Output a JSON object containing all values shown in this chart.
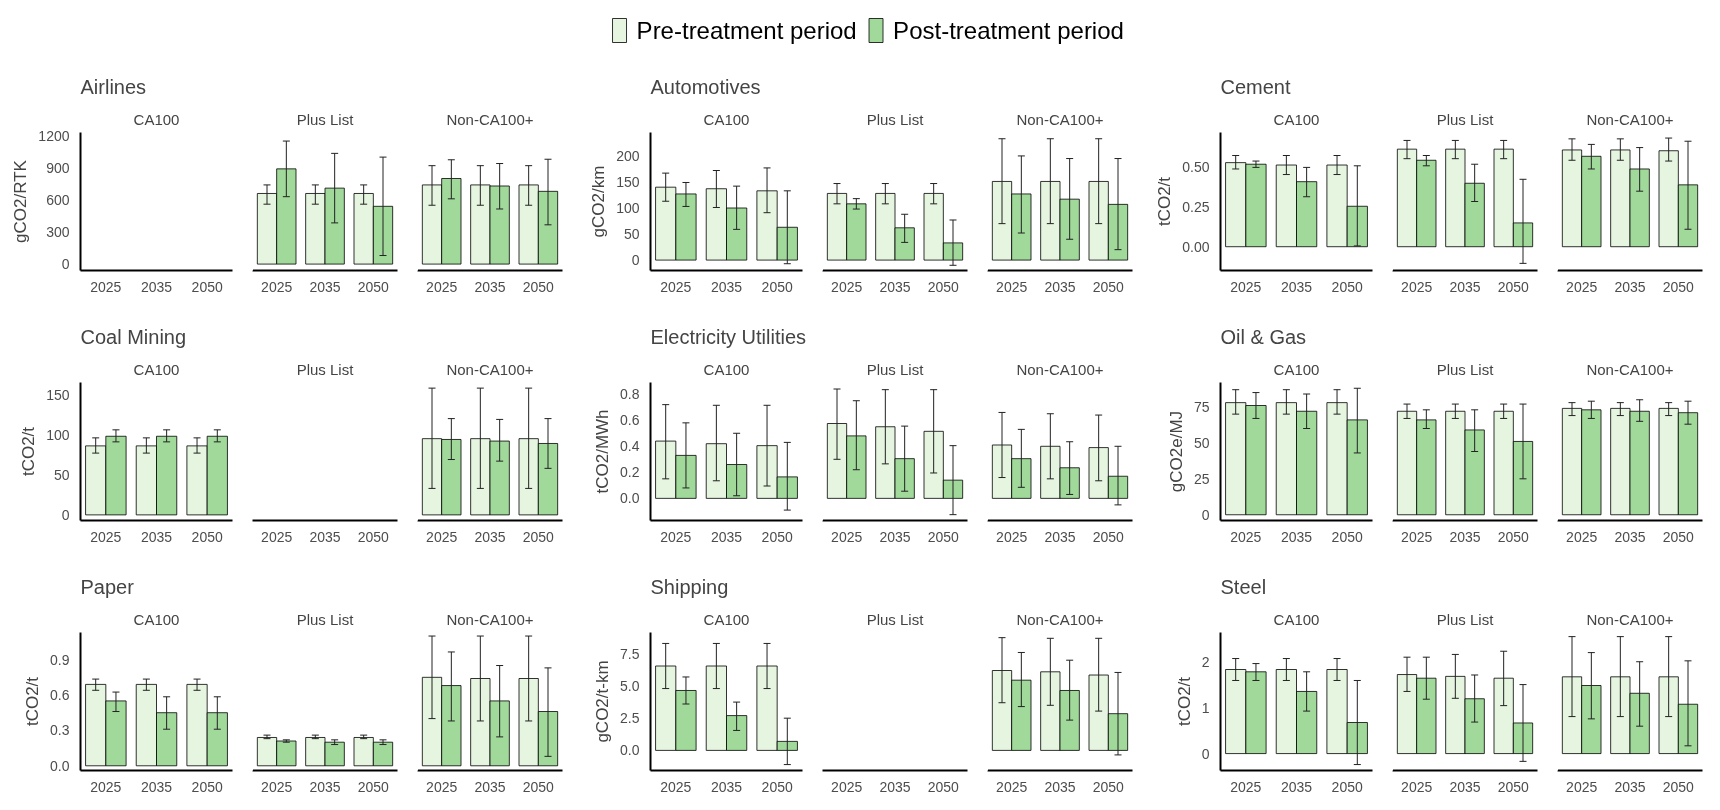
{
  "chart_data": [
    {
      "type": "bar",
      "title": "Airlines",
      "subtitle": "CA100",
      "ylabel": "gCO2/RTK",
      "categories": [
        "2025",
        "2035",
        "2050"
      ],
      "ylim": [
        -60,
        1230
      ],
      "yticks": [
        0,
        300,
        600,
        900,
        1200
      ],
      "legend": "top",
      "series": [
        {
          "name": "Pre-treatment period",
          "color": "#e5f5e0",
          "values": [
            null,
            null,
            null
          ]
        },
        {
          "name": "Post-treatment period",
          "color": "#a1d99b",
          "values": [
            null,
            null,
            null
          ]
        }
      ]
    },
    {
      "type": "bar",
      "subtitle": "Plus List",
      "categories": [
        "2025",
        "2035",
        "2050"
      ],
      "ylim": [
        -60,
        1230
      ],
      "yticks": [
        0,
        300,
        600,
        900,
        1200
      ],
      "tick_labels": "x",
      "series": [
        {
          "color": "#e5f5e0",
          "values": [
            660,
            660,
            660
          ],
          "errors": [
            [
              560,
              740
            ],
            [
              560,
              740
            ],
            [
              560,
              740
            ]
          ]
        },
        {
          "color": "#a1d99b",
          "values": [
            890,
            710,
            540
          ],
          "errors": [
            [
              630,
              1150
            ],
            [
              385,
              1035
            ],
            [
              80,
              1000
            ]
          ]
        }
      ]
    },
    {
      "type": "bar",
      "subtitle": "Non-CA100+",
      "categories": [
        "2025",
        "2035",
        "2050"
      ],
      "ylim": [
        -60,
        1230
      ],
      "yticks": [
        0,
        300,
        600,
        900,
        1200
      ],
      "tick_labels": "x",
      "series": [
        {
          "color": "#e5f5e0",
          "values": [
            740,
            740,
            740
          ],
          "errors": [
            [
              550,
              920
            ],
            [
              550,
              920
            ],
            [
              550,
              920
            ]
          ]
        },
        {
          "color": "#a1d99b",
          "values": [
            800,
            730,
            680
          ],
          "errors": [
            [
              610,
              975
            ],
            [
              515,
              940
            ],
            [
              367,
              980
            ]
          ]
        }
      ]
    },
    {
      "type": "bar",
      "title": "Automotives",
      "subtitle": "CA100",
      "ylabel": "gCO2/km",
      "categories": [
        "2025",
        "2035",
        "2050"
      ],
      "ylim": [
        -20,
        245
      ],
      "yticks": [
        0,
        50,
        100,
        150,
        200
      ],
      "series": [
        {
          "color": "#e5f5e0",
          "values": [
            140,
            137,
            133
          ],
          "errors": [
            [
              113,
              167
            ],
            [
              101,
              172
            ],
            [
              91,
              177
            ]
          ]
        },
        {
          "color": "#a1d99b",
          "values": [
            127,
            100,
            63
          ],
          "errors": [
            [
              103,
              149
            ],
            [
              59,
              142
            ],
            [
              -7,
              133
            ]
          ]
        }
      ]
    },
    {
      "type": "bar",
      "subtitle": "Plus List",
      "categories": [
        "2025",
        "2035",
        "2050"
      ],
      "ylim": [
        -20,
        245
      ],
      "yticks": [
        0,
        50,
        100,
        150,
        200
      ],
      "tick_labels": "x",
      "series": [
        {
          "color": "#e5f5e0",
          "values": [
            128,
            128,
            128
          ],
          "errors": [
            [
              108,
              147
            ],
            [
              108,
              147
            ],
            [
              108,
              147
            ]
          ]
        },
        {
          "color": "#a1d99b",
          "values": [
            108,
            62,
            33
          ],
          "errors": [
            [
              98,
              118
            ],
            [
              34,
              88
            ],
            [
              -10,
              77
            ]
          ]
        }
      ]
    },
    {
      "type": "bar",
      "subtitle": "Non-CA100+",
      "categories": [
        "2025",
        "2035",
        "2050"
      ],
      "ylim": [
        -20,
        245
      ],
      "yticks": [
        0,
        50,
        100,
        150,
        200
      ],
      "tick_labels": "x",
      "series": [
        {
          "color": "#e5f5e0",
          "values": [
            151,
            151,
            151
          ],
          "errors": [
            [
              70,
              233
            ],
            [
              70,
              233
            ],
            [
              70,
              233
            ]
          ]
        },
        {
          "color": "#a1d99b",
          "values": [
            127,
            117,
            107
          ],
          "errors": [
            [
              52,
              200
            ],
            [
              40,
              195
            ],
            [
              20,
              195
            ]
          ]
        }
      ]
    },
    {
      "type": "bar",
      "title": "Cement",
      "subtitle": "CA100",
      "ylabel": "tCO2/t",
      "categories": [
        "2025",
        "2035",
        "2050"
      ],
      "ylim": [
        -0.15,
        0.72
      ],
      "yticks": [
        {
          "value": 0,
          "label": "0.00"
        },
        {
          "value": 0.25,
          "label": "0.25"
        },
        {
          "value": 0.5,
          "label": "0.50"
        }
      ],
      "series": [
        {
          "color": "#e5f5e0",
          "values": [
            0.53,
            0.515,
            0.515
          ],
          "errors": [
            [
              0.49,
              0.575
            ],
            [
              0.455,
              0.575
            ],
            [
              0.455,
              0.575
            ]
          ]
        },
        {
          "color": "#a1d99b",
          "values": [
            0.52,
            0.41,
            0.255
          ],
          "errors": [
            [
              0.5,
              0.54
            ],
            [
              0.315,
              0.5
            ],
            [
              0.005,
              0.51
            ]
          ]
        }
      ]
    },
    {
      "type": "bar",
      "subtitle": "Plus List",
      "categories": [
        "2025",
        "2035",
        "2050"
      ],
      "ylim": [
        -0.15,
        0.72
      ],
      "yticks": [
        0,
        0.25,
        0.5
      ],
      "tick_labels": "x",
      "series": [
        {
          "color": "#e5f5e0",
          "values": [
            0.615,
            0.615,
            0.615
          ],
          "errors": [
            [
              0.555,
              0.67
            ],
            [
              0.555,
              0.67
            ],
            [
              0.555,
              0.67
            ]
          ]
        },
        {
          "color": "#a1d99b",
          "values": [
            0.545,
            0.4,
            0.15
          ],
          "errors": [
            [
              0.51,
              0.575
            ],
            [
              0.285,
              0.52
            ],
            [
              -0.105,
              0.425
            ]
          ]
        }
      ]
    },
    {
      "type": "bar",
      "subtitle": "Non-CA100+",
      "categories": [
        "2025",
        "2035",
        "2050"
      ],
      "ylim": [
        -0.15,
        0.72
      ],
      "yticks": [
        0,
        0.25,
        0.5
      ],
      "tick_labels": "x",
      "series": [
        {
          "color": "#e5f5e0",
          "values": [
            0.61,
            0.61,
            0.605
          ],
          "errors": [
            [
              0.545,
              0.68
            ],
            [
              0.545,
              0.68
            ],
            [
              0.54,
              0.685
            ]
          ]
        },
        {
          "color": "#a1d99b",
          "values": [
            0.57,
            0.49,
            0.39
          ],
          "errors": [
            [
              0.49,
              0.645
            ],
            [
              0.35,
              0.625
            ],
            [
              0.11,
              0.665
            ]
          ]
        }
      ]
    },
    {
      "type": "bar",
      "title": "Coal Mining",
      "subtitle": "CA100",
      "ylabel": "tCO2/t",
      "categories": [
        "2025",
        "2035",
        "2050"
      ],
      "ylim": [
        -7,
        165
      ],
      "yticks": [
        0,
        50,
        100,
        150
      ],
      "series": [
        {
          "color": "#e5f5e0",
          "values": [
            86,
            86,
            86
          ],
          "errors": [
            [
              77,
              96
            ],
            [
              77,
              96
            ],
            [
              77,
              96
            ]
          ]
        },
        {
          "color": "#a1d99b",
          "values": [
            98,
            98,
            98
          ],
          "errors": [
            [
              91,
              106
            ],
            [
              91,
              106
            ],
            [
              91,
              106
            ]
          ]
        }
      ]
    },
    {
      "type": "other",
      "subtitle": "Plus List",
      "categories": [
        "2025",
        "2035",
        "2050"
      ]
    },
    {
      "type": "bar",
      "subtitle": "Non-CA100+",
      "categories": [
        "2025",
        "2035",
        "2050"
      ],
      "ylim": [
        -7,
        165
      ],
      "yticks": [
        0,
        50,
        100,
        150
      ],
      "tick_labels": "x",
      "series": [
        {
          "color": "#e5f5e0",
          "values": [
            95,
            95,
            95
          ],
          "errors": [
            [
              33,
              158
            ],
            [
              33,
              158
            ],
            [
              33,
              158
            ]
          ]
        },
        {
          "color": "#a1d99b",
          "values": [
            94,
            92,
            89
          ],
          "errors": [
            [
              69,
              120
            ],
            [
              67,
              119
            ],
            [
              58,
              120
            ]
          ]
        }
      ]
    },
    {
      "type": "bar",
      "title": "Electricity Utilities",
      "subtitle": "CA100",
      "ylabel": "tCO2/MWh",
      "categories": [
        "2025",
        "2035",
        "2050"
      ],
      "ylim": [
        -0.17,
        0.89
      ],
      "yticks": [
        {
          "value": 0,
          "label": "0.0"
        },
        {
          "value": 0.2,
          "label": "0.2"
        },
        {
          "value": 0.4,
          "label": "0.4"
        },
        {
          "value": 0.6,
          "label": "0.6"
        },
        {
          "value": 0.8,
          "label": "0.8"
        }
      ],
      "series": [
        {
          "color": "#e5f5e0",
          "values": [
            0.44,
            0.42,
            0.405
          ],
          "errors": [
            [
              0.15,
              0.72
            ],
            [
              0.135,
              0.715
            ],
            [
              0.095,
              0.715
            ]
          ]
        },
        {
          "color": "#a1d99b",
          "values": [
            0.33,
            0.26,
            0.165
          ],
          "errors": [
            [
              0.08,
              0.58
            ],
            [
              0.02,
              0.5
            ],
            [
              -0.09,
              0.43
            ]
          ]
        }
      ]
    },
    {
      "type": "bar",
      "subtitle": "Plus List",
      "categories": [
        "2025",
        "2035",
        "2050"
      ],
      "ylim": [
        -0.17,
        0.89
      ],
      "yticks": [
        0,
        0.2,
        0.4,
        0.6,
        0.8
      ],
      "tick_labels": "x",
      "series": [
        {
          "color": "#e5f5e0",
          "values": [
            0.575,
            0.55,
            0.515
          ],
          "errors": [
            [
              0.3,
              0.84
            ],
            [
              0.265,
              0.835
            ],
            [
              0.195,
              0.835
            ]
          ]
        },
        {
          "color": "#a1d99b",
          "values": [
            0.48,
            0.305,
            0.14
          ],
          "errors": [
            [
              0.22,
              0.75
            ],
            [
              0.055,
              0.555
            ],
            [
              -0.125,
              0.405
            ]
          ]
        }
      ]
    },
    {
      "type": "bar",
      "subtitle": "Non-CA100+",
      "categories": [
        "2025",
        "2035",
        "2050"
      ],
      "ylim": [
        -0.17,
        0.89
      ],
      "yticks": [
        0,
        0.2,
        0.4,
        0.6,
        0.8
      ],
      "tick_labels": "x",
      "series": [
        {
          "color": "#e5f5e0",
          "values": [
            0.41,
            0.4,
            0.39
          ],
          "errors": [
            [
              0.16,
              0.66
            ],
            [
              0.15,
              0.65
            ],
            [
              0.135,
              0.64
            ]
          ]
        },
        {
          "color": "#a1d99b",
          "values": [
            0.305,
            0.235,
            0.17
          ],
          "errors": [
            [
              0.085,
              0.53
            ],
            [
              0.03,
              0.435
            ],
            [
              -0.05,
              0.4
            ]
          ]
        }
      ]
    },
    {
      "type": "bar",
      "title": "Oil & Gas",
      "subtitle": "CA100",
      "ylabel": "gCO2e/MJ",
      "categories": [
        "2025",
        "2035",
        "2050"
      ],
      "ylim": [
        -4,
        92
      ],
      "yticks": [
        0,
        25,
        50,
        75
      ],
      "series": [
        {
          "color": "#e5f5e0",
          "values": [
            78,
            78,
            78
          ],
          "errors": [
            [
              70,
              87
            ],
            [
              70,
              87
            ],
            [
              70,
              87
            ]
          ]
        },
        {
          "color": "#a1d99b",
          "values": [
            76,
            72,
            66
          ],
          "errors": [
            [
              67,
              85
            ],
            [
              60,
              84
            ],
            [
              43,
              88
            ]
          ]
        }
      ]
    },
    {
      "type": "bar",
      "subtitle": "Plus List",
      "categories": [
        "2025",
        "2035",
        "2050"
      ],
      "ylim": [
        -4,
        92
      ],
      "yticks": [
        0,
        25,
        50,
        75
      ],
      "tick_labels": "x",
      "series": [
        {
          "color": "#e5f5e0",
          "values": [
            72,
            72,
            72
          ],
          "errors": [
            [
              67,
              77
            ],
            [
              67,
              77
            ],
            [
              67,
              77
            ]
          ]
        },
        {
          "color": "#a1d99b",
          "values": [
            66,
            59,
            51
          ],
          "errors": [
            [
              60,
              73
            ],
            [
              44,
              73
            ],
            [
              25,
              77
            ]
          ]
        }
      ]
    },
    {
      "type": "bar",
      "subtitle": "Non-CA100+",
      "categories": [
        "2025",
        "2035",
        "2050"
      ],
      "ylim": [
        -4,
        92
      ],
      "yticks": [
        0,
        25,
        50,
        75
      ],
      "tick_labels": "x",
      "series": [
        {
          "color": "#e5f5e0",
          "values": [
            74,
            74,
            74
          ],
          "errors": [
            [
              69,
              78
            ],
            [
              69,
              78
            ],
            [
              69,
              78
            ]
          ]
        },
        {
          "color": "#a1d99b",
          "values": [
            73,
            72,
            71
          ],
          "errors": [
            [
              67,
              79
            ],
            [
              65,
              80
            ],
            [
              63,
              79
            ]
          ]
        }
      ]
    },
    {
      "type": "bar",
      "title": "Paper",
      "subtitle": "CA100",
      "ylabel": "tCO2/t",
      "categories": [
        "2025",
        "2035",
        "2050"
      ],
      "ylim": [
        -0.04,
        1.13
      ],
      "yticks": [
        {
          "value": 0,
          "label": "0.0"
        },
        {
          "value": 0.3,
          "label": "0.3"
        },
        {
          "value": 0.6,
          "label": "0.6"
        },
        {
          "value": 0.9,
          "label": "0.9"
        }
      ],
      "series": [
        {
          "color": "#e5f5e0",
          "values": [
            0.69,
            0.69,
            0.69
          ],
          "errors": [
            [
              0.64,
              0.735
            ],
            [
              0.64,
              0.735
            ],
            [
              0.64,
              0.735
            ]
          ]
        },
        {
          "color": "#a1d99b",
          "values": [
            0.55,
            0.45,
            0.45
          ],
          "errors": [
            [
              0.46,
              0.625
            ],
            [
              0.31,
              0.585
            ],
            [
              0.31,
              0.585
            ]
          ]
        }
      ]
    },
    {
      "type": "bar",
      "subtitle": "Plus List",
      "categories": [
        "2025",
        "2035",
        "2050"
      ],
      "ylim": [
        -0.04,
        1.13
      ],
      "yticks": [
        0,
        0.3,
        0.6,
        0.9
      ],
      "tick_labels": "x",
      "series": [
        {
          "color": "#e5f5e0",
          "values": [
            0.24,
            0.24,
            0.24
          ],
          "errors": [
            [
              0.23,
              0.26
            ],
            [
              0.23,
              0.26
            ],
            [
              0.23,
              0.26
            ]
          ]
        },
        {
          "color": "#a1d99b",
          "values": [
            0.21,
            0.2,
            0.2
          ],
          "errors": [
            [
              0.2,
              0.22
            ],
            [
              0.18,
              0.22
            ],
            [
              0.18,
              0.22
            ]
          ]
        }
      ]
    },
    {
      "type": "bar",
      "subtitle": "Non-CA100+",
      "categories": [
        "2025",
        "2035",
        "2050"
      ],
      "ylim": [
        -0.04,
        1.13
      ],
      "yticks": [
        0,
        0.3,
        0.6,
        0.9
      ],
      "tick_labels": "x",
      "series": [
        {
          "color": "#e5f5e0",
          "values": [
            0.75,
            0.74,
            0.74
          ],
          "errors": [
            [
              0.4,
              1.1
            ],
            [
              0.38,
              1.1
            ],
            [
              0.38,
              1.1
            ]
          ]
        },
        {
          "color": "#a1d99b",
          "values": [
            0.68,
            0.55,
            0.46
          ],
          "errors": [
            [
              0.38,
              0.965
            ],
            [
              0.245,
              0.85
            ],
            [
              0.08,
              0.83
            ]
          ]
        }
      ]
    },
    {
      "type": "bar",
      "title": "Shipping",
      "subtitle": "CA100",
      "ylabel": "gCO2/t-km",
      "categories": [
        "2025",
        "2035",
        "2050"
      ],
      "ylim": [
        -1.56,
        9.15
      ],
      "yticks": [
        {
          "value": 0,
          "label": "0.0"
        },
        {
          "value": 2.5,
          "label": "2.5"
        },
        {
          "value": 5,
          "label": "5.0"
        },
        {
          "value": 7.5,
          "label": "7.5"
        }
      ],
      "series": [
        {
          "color": "#e5f5e0",
          "values": [
            6.55,
            6.55,
            6.55
          ],
          "errors": [
            [
              4.8,
              8.3
            ],
            [
              4.8,
              8.3
            ],
            [
              4.8,
              8.3
            ]
          ]
        },
        {
          "color": "#a1d99b",
          "values": [
            4.65,
            2.7,
            0.7
          ],
          "errors": [
            [
              3.6,
              5.7
            ],
            [
              1.55,
              3.75
            ],
            [
              -1.1,
              2.5
            ]
          ]
        }
      ]
    },
    {
      "type": "other",
      "subtitle": "Plus List",
      "categories": [
        "2025",
        "2035",
        "2050"
      ]
    },
    {
      "type": "bar",
      "subtitle": "Non-CA100+",
      "categories": [
        "2025",
        "2035",
        "2050"
      ],
      "ylim": [
        -1.56,
        9.15
      ],
      "yticks": [
        0,
        2.5,
        5,
        7.5
      ],
      "tick_labels": "x",
      "series": [
        {
          "color": "#e5f5e0",
          "values": [
            6.2,
            6.1,
            5.85
          ],
          "errors": [
            [
              3.7,
              8.75
            ],
            [
              3.5,
              8.7
            ],
            [
              3.05,
              8.7
            ]
          ]
        },
        {
          "color": "#a1d99b",
          "values": [
            5.45,
            4.65,
            2.85
          ],
          "errors": [
            [
              3.4,
              7.6
            ],
            [
              2.35,
              7
            ],
            [
              -0.35,
              6.05
            ]
          ]
        }
      ]
    },
    {
      "type": "bar",
      "title": "Steel",
      "subtitle": "CA100",
      "ylabel": "tCO2/t",
      "categories": [
        "2025",
        "2035",
        "2050"
      ],
      "ylim": [
        -0.37,
        2.65
      ],
      "yticks": [
        0,
        1,
        2
      ],
      "series": [
        {
          "color": "#e5f5e0",
          "values": [
            1.84,
            1.84,
            1.84
          ],
          "errors": [
            [
              1.6,
              2.08
            ],
            [
              1.6,
              2.08
            ],
            [
              1.6,
              2.08
            ]
          ]
        },
        {
          "color": "#a1d99b",
          "values": [
            1.79,
            1.36,
            0.68
          ],
          "errors": [
            [
              1.6,
              1.97
            ],
            [
              0.93,
              1.79
            ],
            [
              -0.24,
              1.6
            ]
          ]
        }
      ]
    },
    {
      "type": "bar",
      "subtitle": "Plus List",
      "categories": [
        "2025",
        "2035",
        "2050"
      ],
      "ylim": [
        -0.37,
        2.65
      ],
      "yticks": [
        0,
        1,
        2
      ],
      "tick_labels": "x",
      "series": [
        {
          "color": "#e5f5e0",
          "values": [
            1.73,
            1.69,
            1.65
          ],
          "errors": [
            [
              1.36,
              2.11
            ],
            [
              1.21,
              2.17
            ],
            [
              1.05,
              2.24
            ]
          ]
        },
        {
          "color": "#a1d99b",
          "values": [
            1.65,
            1.2,
            0.67
          ],
          "errors": [
            [
              1.19,
              2.11
            ],
            [
              0.69,
              1.72
            ],
            [
              -0.17,
              1.51
            ]
          ]
        }
      ]
    },
    {
      "type": "bar",
      "subtitle": "Non-CA100+",
      "categories": [
        "2025",
        "2035",
        "2050"
      ],
      "ylim": [
        -0.37,
        2.65
      ],
      "yticks": [
        0,
        1,
        2
      ],
      "tick_labels": "x",
      "series": [
        {
          "color": "#e5f5e0",
          "values": [
            1.68,
            1.68,
            1.68
          ],
          "errors": [
            [
              0.81,
              2.56
            ],
            [
              0.81,
              2.56
            ],
            [
              0.81,
              2.56
            ]
          ]
        },
        {
          "color": "#a1d99b",
          "values": [
            1.49,
            1.32,
            1.08
          ],
          "errors": [
            [
              0.76,
              2.21
            ],
            [
              0.6,
              2.01
            ],
            [
              0.17,
              2.03
            ]
          ]
        }
      ]
    }
  ]
}
